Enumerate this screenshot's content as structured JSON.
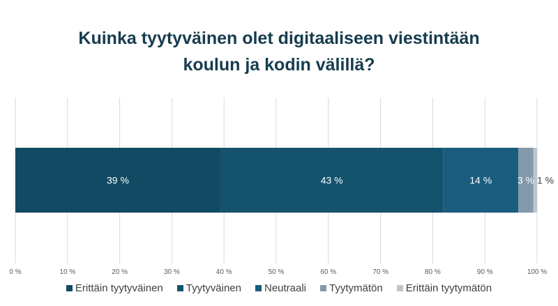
{
  "chart_data": {
    "type": "bar",
    "orientation": "horizontal-stacked",
    "title_lines": [
      "Kuinka tyytyväinen olet digitaaliseen viestintään",
      "koulun ja kodin välillä?"
    ],
    "xlim": [
      0,
      100
    ],
    "ticks": [
      0,
      10,
      20,
      30,
      40,
      50,
      60,
      70,
      80,
      90,
      100
    ],
    "tick_suffix": " %",
    "grid": true,
    "legend_position": "bottom",
    "series": [
      {
        "name": "Erittäin tyytyväinen",
        "value": 39.3,
        "label": "39 %",
        "color": "#114a62"
      },
      {
        "name": "Tyytyväinen",
        "value": 42.7,
        "label": "43 %",
        "color": "#14526d"
      },
      {
        "name": "Neutraali",
        "value": 14.4,
        "label": "14 %",
        "color": "#1a5d7e"
      },
      {
        "name": "Tyytymätön",
        "value": 2.9,
        "label": "3 %",
        "color": "#8499ab"
      },
      {
        "name": "Erittäin tyytymätön",
        "value": 0.7,
        "label": "1 %",
        "color": "#bcc6cf"
      }
    ]
  }
}
